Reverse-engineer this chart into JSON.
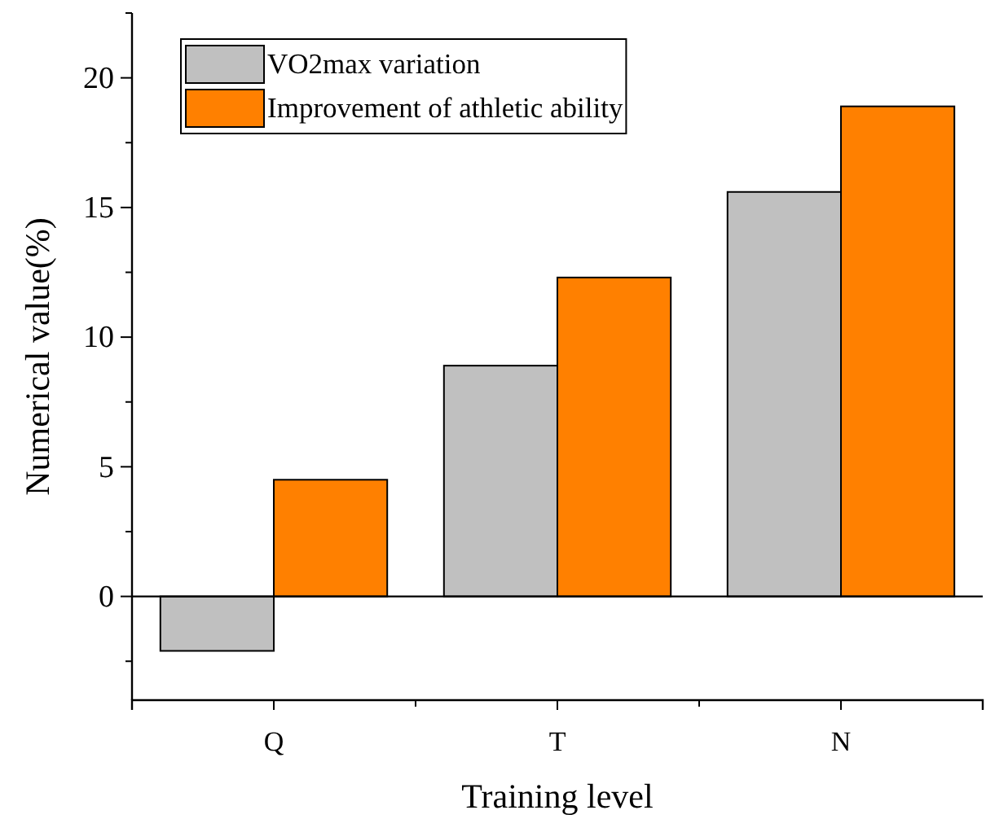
{
  "chart_data": {
    "type": "bar",
    "xlabel": "Training level",
    "ylabel": "Numerical value(%)",
    "categories": [
      "Q",
      "T",
      "N"
    ],
    "series": [
      {
        "name": "VO2max variation",
        "color": "#c0c0c0",
        "values": [
          -2.1,
          8.9,
          15.6
        ]
      },
      {
        "name": "Improvement of athletic ability",
        "color": "#ff8000",
        "values": [
          4.5,
          12.3,
          18.9
        ]
      }
    ],
    "ylim": [
      -4,
      22.5
    ],
    "yticks": [
      {
        "value": -2.5,
        "label": null
      },
      0,
      {
        "value": 2.5,
        "label": null
      },
      5,
      {
        "value": 7.5,
        "label": null
      },
      10,
      {
        "value": 12.5,
        "label": null
      },
      15,
      {
        "value": 17.5,
        "label": null
      },
      20,
      {
        "value": 22.5,
        "label": null
      }
    ],
    "ref_lines": [
      {
        "axis": "y",
        "value": 0
      }
    ],
    "legend": "top left"
  }
}
